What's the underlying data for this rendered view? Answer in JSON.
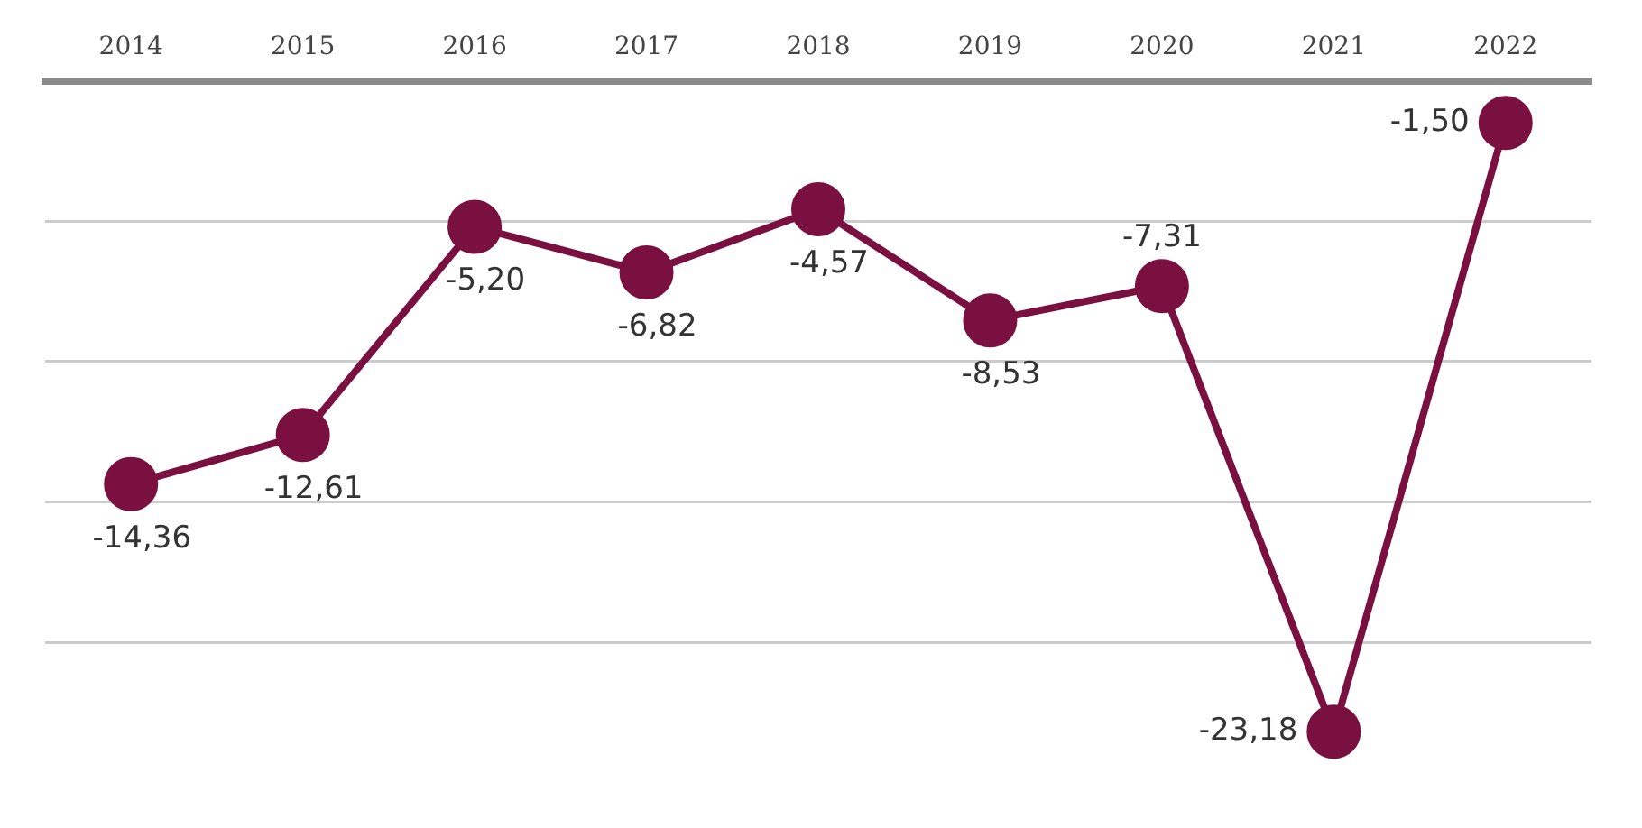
{
  "chart_data": {
    "type": "line",
    "categories": [
      "2014",
      "2015",
      "2016",
      "2017",
      "2018",
      "2019",
      "2020",
      "2021",
      "2022"
    ],
    "series": [
      {
        "color": "#7a1040",
        "values": [
          -14.36,
          -12.61,
          -5.2,
          -6.82,
          -4.57,
          -8.53,
          -7.31,
          -23.18,
          -1.5
        ],
        "value_labels": [
          "-14,36",
          "-12,61",
          "-5,20",
          "-6,82",
          "-4,57",
          "-8,53",
          "-7,31",
          "-23,18",
          "-1,50"
        ]
      }
    ],
    "yticks": [
      {
        "value": 0,
        "label": null
      },
      {
        "value": -5,
        "label": null
      },
      {
        "value": -10,
        "label": null
      },
      {
        "value": -15,
        "label": null
      },
      {
        "value": -20,
        "label": null
      }
    ],
    "tick_labels": "x",
    "grid": "y",
    "marker": "circle",
    "line_style": "solid",
    "legend": false
  }
}
